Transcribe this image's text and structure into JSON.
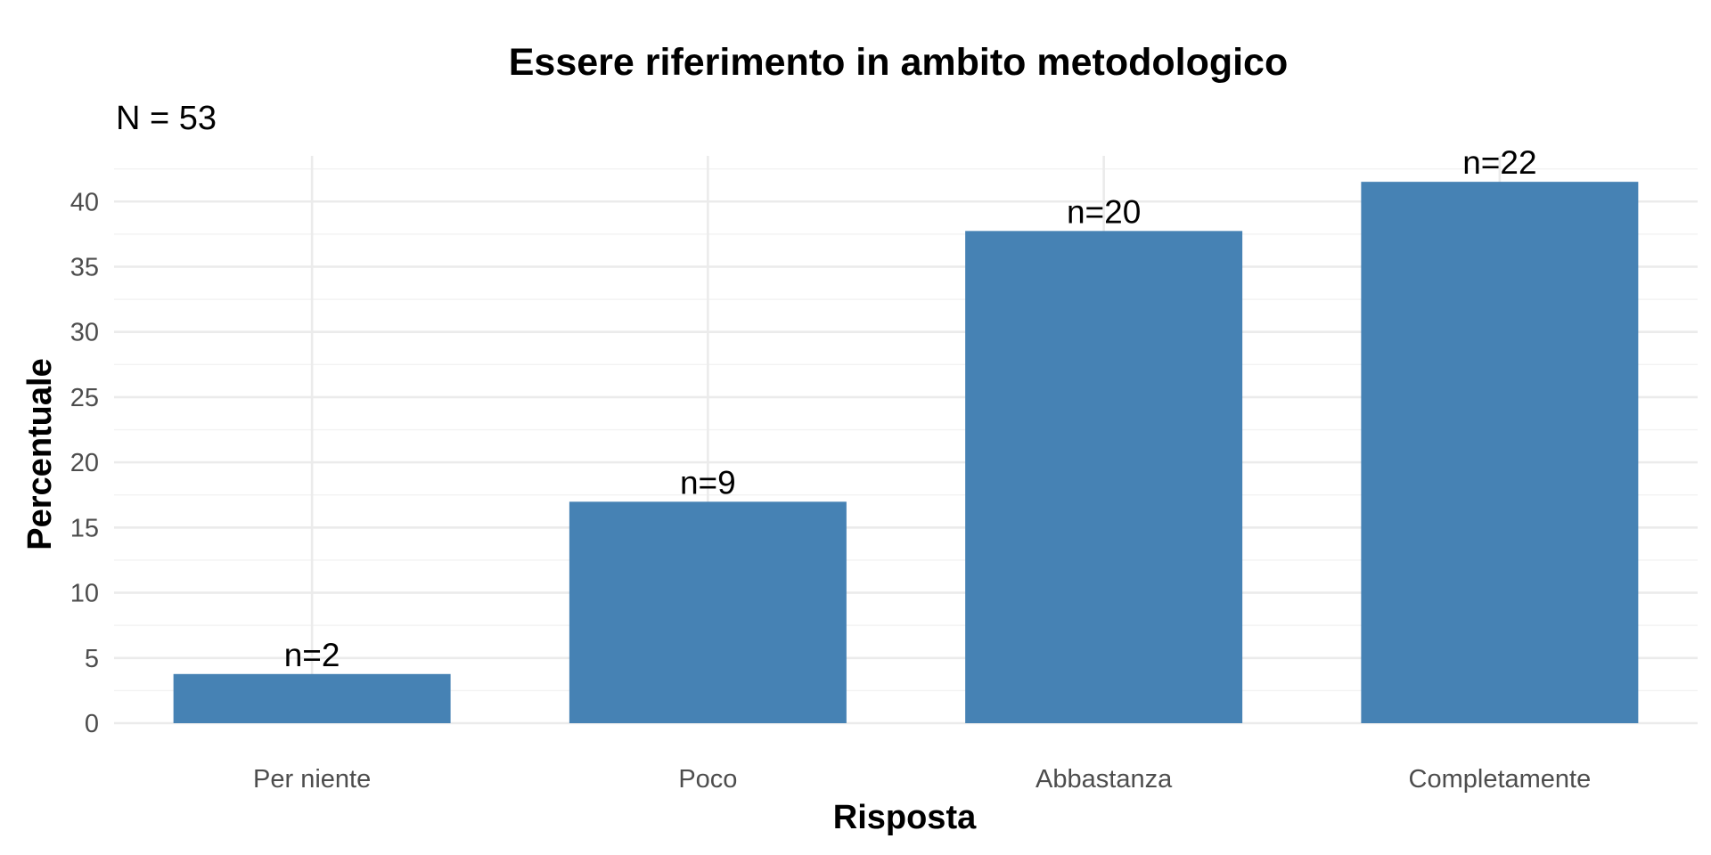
{
  "chart_data": {
    "type": "bar",
    "title": "Essere riferimento in ambito metodologico",
    "subtitle": "N = 53",
    "xlabel": "Risposta",
    "ylabel": "Percentuale",
    "categories": [
      "Per niente",
      "Poco",
      "Abbastanza",
      "Completamente"
    ],
    "values": [
      3.77,
      16.98,
      37.74,
      41.51
    ],
    "data_labels": [
      "n=2",
      "n=9",
      "n=20",
      "n=22"
    ],
    "ylim": [
      0,
      43.5
    ],
    "yticks": [
      0,
      5,
      10,
      15,
      20,
      25,
      30,
      35,
      40
    ],
    "ytick_labels": [
      "0",
      "5",
      "10",
      "15",
      "20",
      "25",
      "30",
      "35",
      "40"
    ],
    "grid": true,
    "legend": "none",
    "bar_color": "#4682B4"
  }
}
